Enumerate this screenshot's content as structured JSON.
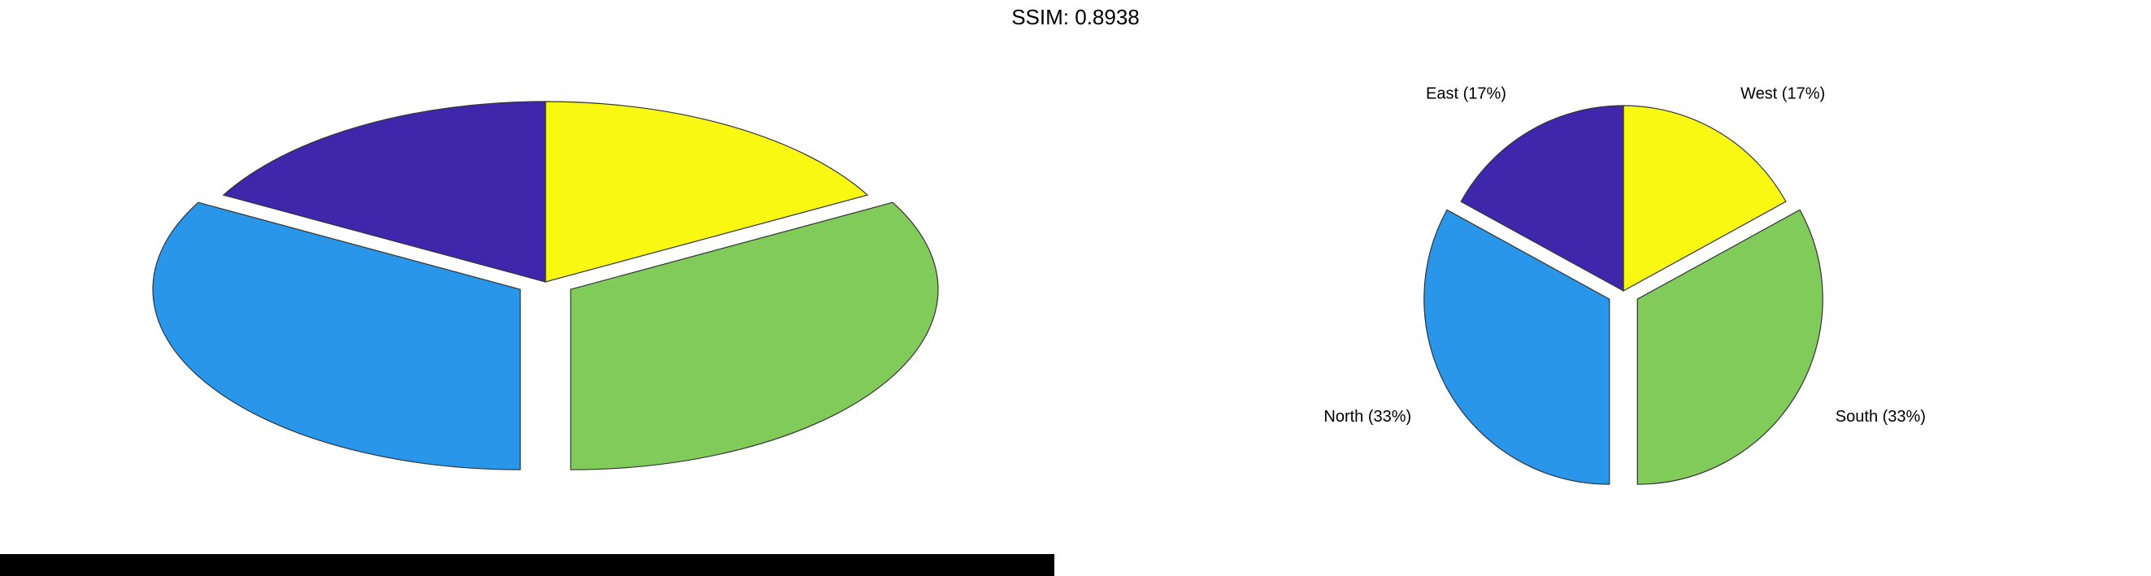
{
  "title": "SSIM: 0.8938",
  "chart_data": [
    {
      "type": "pie",
      "variant": "stretched",
      "categories": [
        "West",
        "South",
        "North",
        "East"
      ],
      "values": [
        17,
        33,
        33,
        17
      ],
      "colors": [
        "#f8f812",
        "#80cb59",
        "#2996e9",
        "#3e27aa"
      ],
      "exploded": [
        false,
        true,
        true,
        false
      ],
      "labels": []
    },
    {
      "type": "pie",
      "categories": [
        "West",
        "South",
        "North",
        "East"
      ],
      "values": [
        17,
        33,
        33,
        17
      ],
      "colors": [
        "#f8f812",
        "#80cb59",
        "#2996e9",
        "#3e27aa"
      ],
      "exploded": [
        false,
        true,
        true,
        false
      ],
      "labels": [
        "West (17%)",
        "South (33%)",
        "North (33%)",
        "East (17%)"
      ]
    }
  ]
}
